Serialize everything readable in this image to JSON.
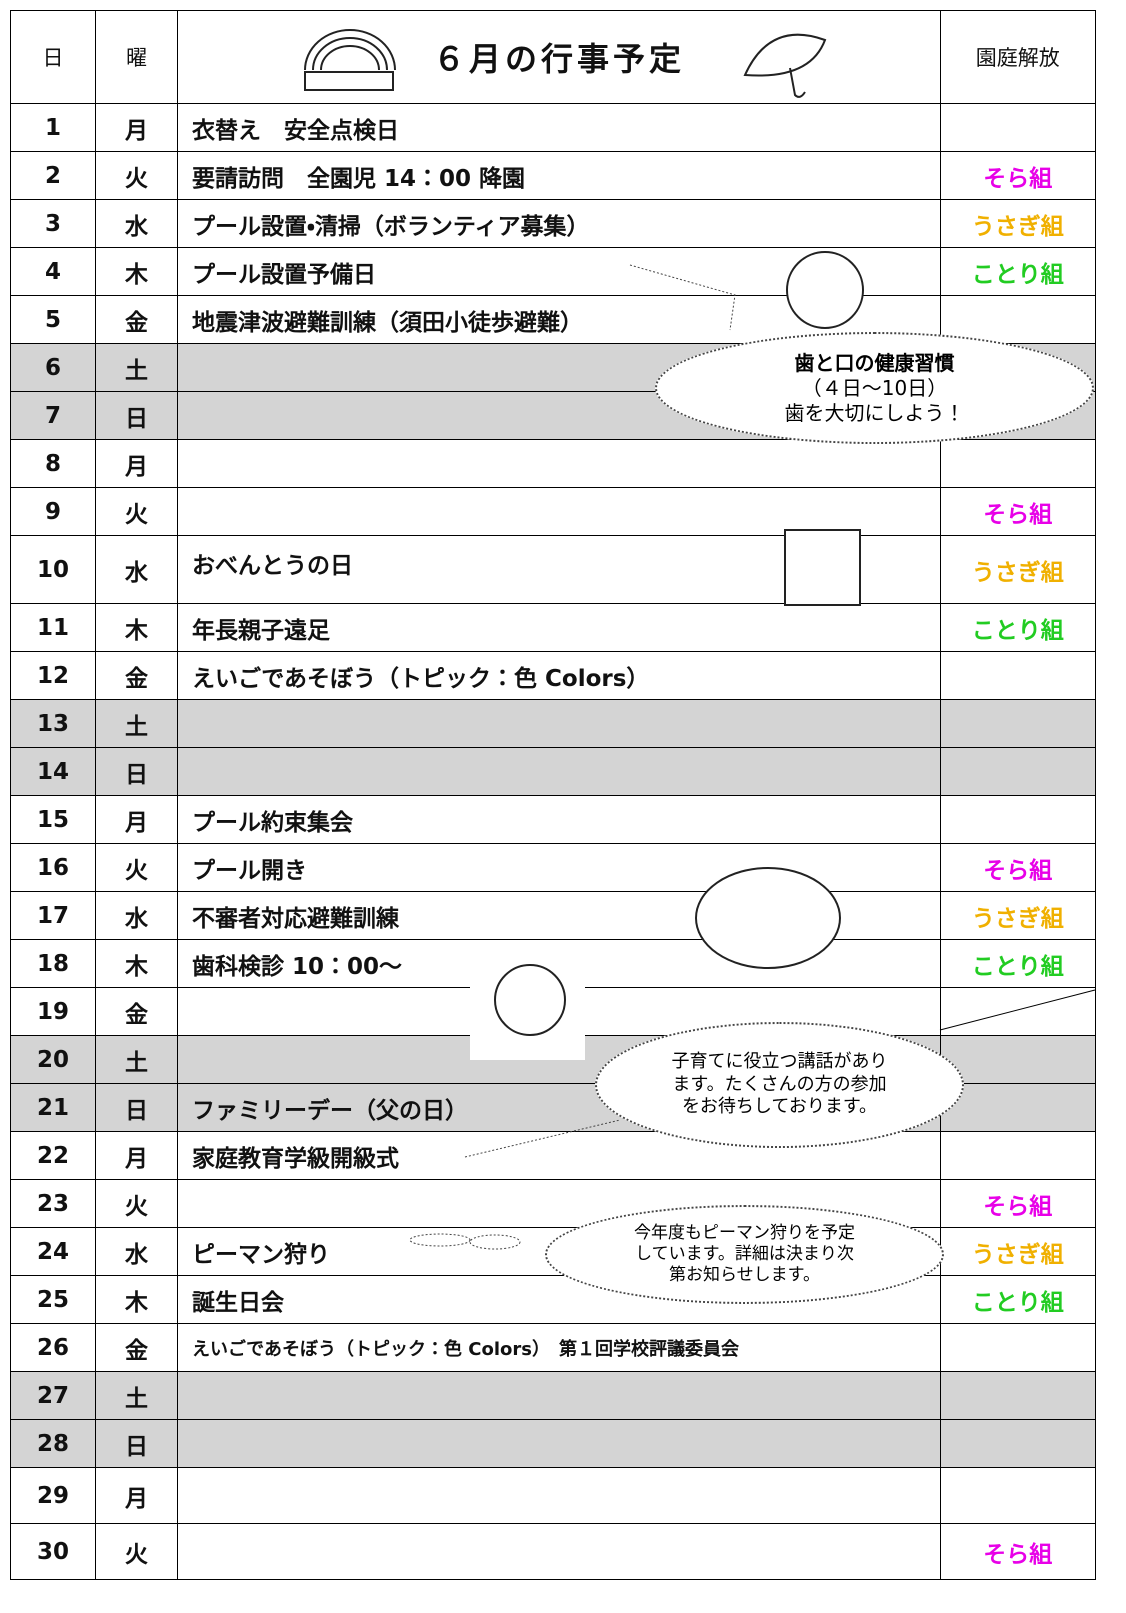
{
  "header": {
    "day": "日",
    "weekday": "曜",
    "title": "６月の行事予定",
    "garden": "園庭解放"
  },
  "rows": [
    {
      "day": "1",
      "weekday": "月",
      "event": "衣替え　安全点検日"
    },
    {
      "day": "2",
      "weekday": "火",
      "event": "要請訪問　全園児 14：00 降園",
      "garden": "そら組",
      "color": "#e800e8"
    },
    {
      "day": "3",
      "weekday": "水",
      "event": "プール設置・清掃（ボランティア募集）",
      "garden": "うさぎ組",
      "color": "#f0b000"
    },
    {
      "day": "4",
      "weekday": "木",
      "event": "プール設置予備日",
      "garden": "ことり組",
      "color": "#22cc22"
    },
    {
      "day": "5",
      "weekday": "金",
      "event": "地震津波避難訓練（須田小徒歩避難）"
    },
    {
      "day": "6",
      "weekday": "土",
      "weekend": true
    },
    {
      "day": "7",
      "weekday": "日",
      "weekend": true
    },
    {
      "day": "8",
      "weekday": "月"
    },
    {
      "day": "9",
      "weekday": "火",
      "garden": "そら組",
      "color": "#e800e8"
    },
    {
      "day": "10",
      "weekday": "水",
      "event": "おべんとうの日",
      "garden": "うさぎ組",
      "color": "#f0b000"
    },
    {
      "day": "11",
      "weekday": "木",
      "event": "年長親子遠足",
      "garden": "ことり組",
      "color": "#22cc22"
    },
    {
      "day": "12",
      "weekday": "金",
      "event": "えいごであそぼう（トピック：色 Colors）"
    },
    {
      "day": "13",
      "weekday": "土",
      "weekend": true
    },
    {
      "day": "14",
      "weekday": "日",
      "weekend": true
    },
    {
      "day": "15",
      "weekday": "月",
      "event": "プール約束集会"
    },
    {
      "day": "16",
      "weekday": "火",
      "event": "プール開き",
      "garden": "そら組",
      "color": "#e800e8"
    },
    {
      "day": "17",
      "weekday": "水",
      "event": "不審者対応避難訓練",
      "garden": "うさぎ組",
      "color": "#f0b000"
    },
    {
      "day": "18",
      "weekday": "木",
      "event": "歯科検診 10：00～",
      "garden": "ことり組",
      "color": "#22cc22"
    },
    {
      "day": "19",
      "weekday": "金"
    },
    {
      "day": "20",
      "weekday": "土",
      "weekend": true
    },
    {
      "day": "21",
      "weekday": "日",
      "event": "ファミリーデー（父の日）",
      "weekend": true
    },
    {
      "day": "22",
      "weekday": "月",
      "event": "家庭教育学級開級式"
    },
    {
      "day": "23",
      "weekday": "火",
      "garden": "そら組",
      "color": "#e800e8"
    },
    {
      "day": "24",
      "weekday": "水",
      "event": "ピーマン狩り",
      "garden": "うさぎ組",
      "color": "#f0b000"
    },
    {
      "day": "25",
      "weekday": "木",
      "event": "誕生日会",
      "garden": "ことり組",
      "color": "#22cc22"
    },
    {
      "day": "26",
      "weekday": "金",
      "event": "えいごであそぼう（トピック：色 Colors）　第１回学校評議委員会",
      "small": true
    },
    {
      "day": "27",
      "weekday": "土",
      "weekend": true
    },
    {
      "day": "28",
      "weekday": "日",
      "weekend": true
    },
    {
      "day": "29",
      "weekday": "月"
    },
    {
      "day": "30",
      "weekday": "火",
      "garden": "そら組",
      "color": "#e800e8"
    }
  ],
  "bubbles": [
    {
      "lines": [
        "歯と口の健康習慣",
        "（４日～10日）",
        "歯を大切にしよう！"
      ]
    },
    {
      "lines": [
        "子育てに役立つ講話があり",
        "ます。たくさんの方の参加",
        "をお待ちしております。"
      ]
    },
    {
      "lines": [
        "今年度もピーマン狩りを予定",
        "しています。詳細は決まり次",
        "第お知らせします。"
      ]
    }
  ]
}
